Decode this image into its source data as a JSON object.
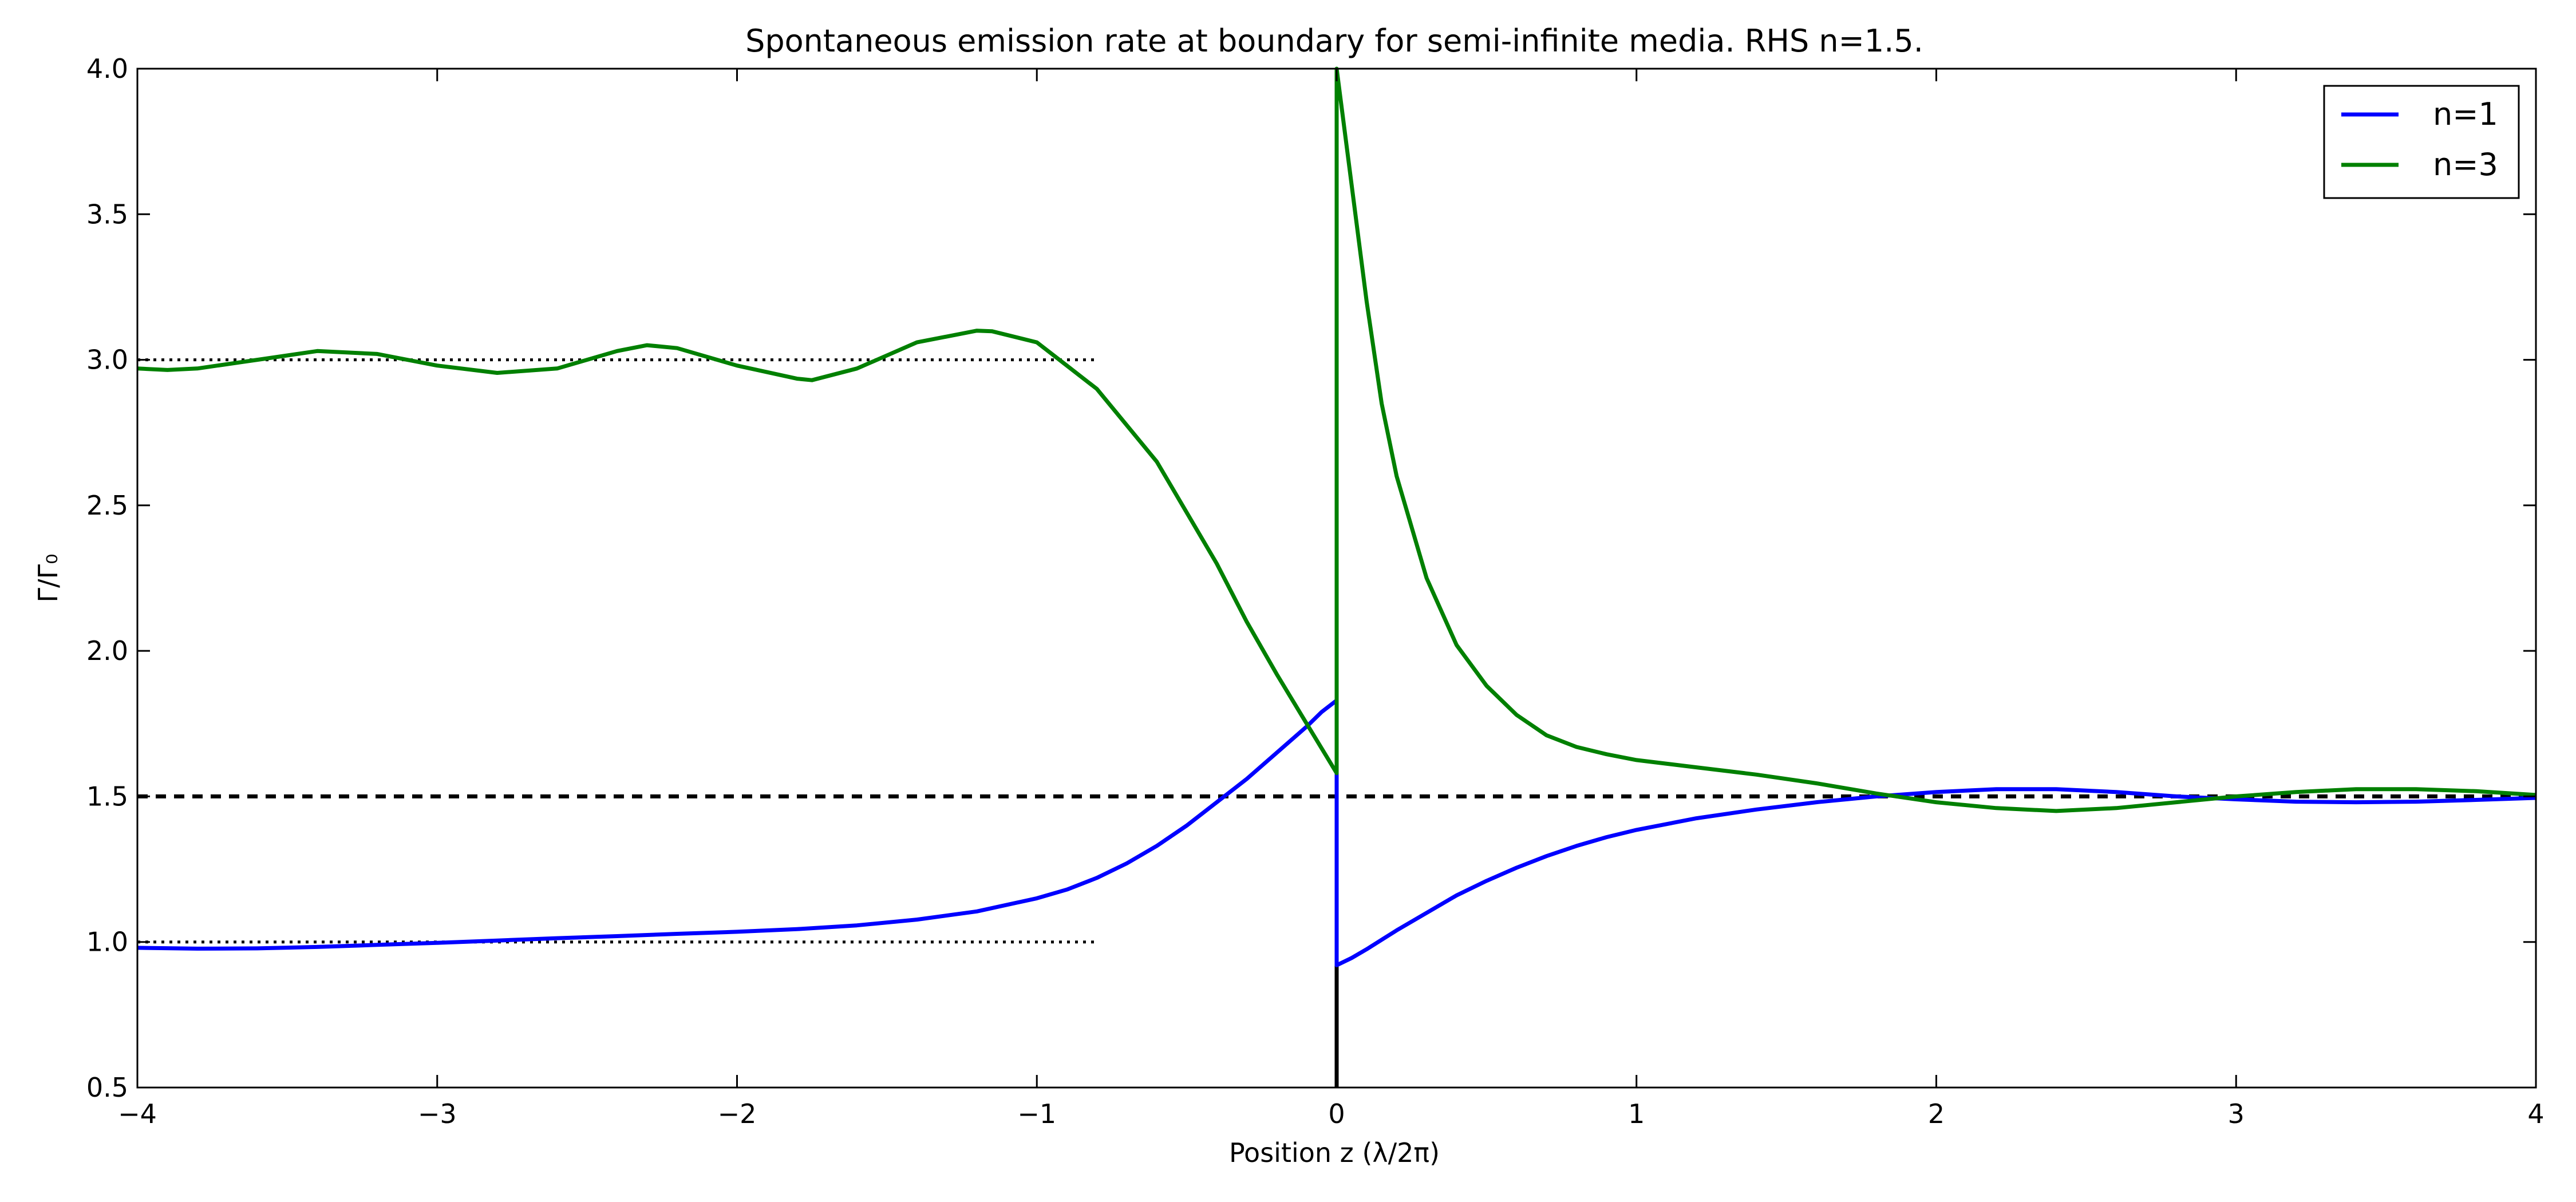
{
  "chart_data": {
    "type": "line",
    "title": "Spontaneous emission rate at boundary for semi-infinite media. RHS n=1.5.",
    "xlabel": "Position z (λ/2π)",
    "ylabel": "Γ/Γ₀",
    "xlim": [
      -4,
      4
    ],
    "ylim": [
      0.5,
      4.0
    ],
    "x_ticks": [
      -4,
      -3,
      -2,
      -1,
      0,
      1,
      2,
      3,
      4
    ],
    "x_tick_labels": [
      "−4",
      "−3",
      "−2",
      "−1",
      "0",
      "1",
      "2",
      "3",
      "4"
    ],
    "y_ticks": [
      0.5,
      1.0,
      1.5,
      2.0,
      2.5,
      3.0,
      3.5,
      4.0
    ],
    "y_tick_labels": [
      "0.5",
      "1.0",
      "1.5",
      "2.0",
      "2.5",
      "3.0",
      "3.5",
      "4.0"
    ],
    "grid": false,
    "legend_position": "top-right",
    "series": [
      {
        "name": "n=1",
        "color": "#0000ff",
        "x": [
          -4.0,
          -3.8,
          -3.6,
          -3.4,
          -3.2,
          -3.0,
          -2.8,
          -2.6,
          -2.4,
          -2.2,
          -2.0,
          -1.8,
          -1.6,
          -1.4,
          -1.2,
          -1.0,
          -0.9,
          -0.8,
          -0.7,
          -0.6,
          -0.5,
          -0.4,
          -0.3,
          -0.2,
          -0.1,
          -0.05,
          0.0,
          0.0,
          0.05,
          0.1,
          0.2,
          0.3,
          0.4,
          0.5,
          0.6,
          0.7,
          0.8,
          0.9,
          1.0,
          1.2,
          1.4,
          1.6,
          1.8,
          2.0,
          2.2,
          2.4,
          2.6,
          2.8,
          3.0,
          3.2,
          3.4,
          3.6,
          3.8,
          4.0
        ],
        "y": [
          0.98,
          0.977,
          0.978,
          0.983,
          0.99,
          0.997,
          1.005,
          1.013,
          1.02,
          1.028,
          1.035,
          1.044,
          1.057,
          1.077,
          1.105,
          1.15,
          1.18,
          1.22,
          1.27,
          1.33,
          1.4,
          1.48,
          1.56,
          1.65,
          1.74,
          1.79,
          1.83,
          0.92,
          0.945,
          0.975,
          1.04,
          1.1,
          1.16,
          1.21,
          1.255,
          1.295,
          1.33,
          1.36,
          1.385,
          1.425,
          1.455,
          1.48,
          1.5,
          1.515,
          1.525,
          1.525,
          1.515,
          1.5,
          1.49,
          1.482,
          1.48,
          1.482,
          1.488,
          1.495
        ]
      },
      {
        "name": "n=3",
        "color": "#008000",
        "x": [
          -4.0,
          -3.9,
          -3.8,
          -3.6,
          -3.4,
          -3.2,
          -3.0,
          -2.8,
          -2.6,
          -2.4,
          -2.3,
          -2.2,
          -2.0,
          -1.8,
          -1.75,
          -1.6,
          -1.4,
          -1.2,
          -1.15,
          -1.0,
          -0.9,
          -0.8,
          -0.6,
          -0.4,
          -0.3,
          -0.2,
          -0.1,
          0.0,
          0.0,
          0.05,
          0.1,
          0.15,
          0.2,
          0.3,
          0.4,
          0.5,
          0.6,
          0.7,
          0.8,
          0.9,
          1.0,
          1.2,
          1.4,
          1.6,
          1.8,
          2.0,
          2.2,
          2.4,
          2.6,
          2.8,
          3.0,
          3.2,
          3.4,
          3.6,
          3.8,
          4.0
        ],
        "y": [
          2.97,
          2.965,
          2.97,
          3.0,
          3.03,
          3.02,
          2.98,
          2.955,
          2.97,
          3.03,
          3.05,
          3.04,
          2.98,
          2.935,
          2.93,
          2.97,
          3.06,
          3.1,
          3.098,
          3.06,
          2.98,
          2.9,
          2.65,
          2.3,
          2.1,
          1.92,
          1.75,
          1.58,
          4.0,
          3.6,
          3.2,
          2.85,
          2.6,
          2.25,
          2.02,
          1.88,
          1.78,
          1.71,
          1.67,
          1.645,
          1.625,
          1.6,
          1.575,
          1.545,
          1.51,
          1.48,
          1.46,
          1.45,
          1.46,
          1.48,
          1.5,
          1.515,
          1.525,
          1.525,
          1.518,
          1.505
        ]
      }
    ],
    "reference_lines": [
      {
        "kind": "horizontal",
        "y": 3.0,
        "x": [
          -4,
          -0.8
        ],
        "style": "dotted",
        "color": "#000000"
      },
      {
        "kind": "horizontal",
        "y": 1.0,
        "x": [
          -4,
          -0.8
        ],
        "style": "dotted",
        "color": "#000000"
      },
      {
        "kind": "horizontal",
        "y": 1.5,
        "x": [
          -4,
          4
        ],
        "style": "dashed",
        "color": "#000000"
      },
      {
        "kind": "vertical",
        "x": 0,
        "y": [
          0.5,
          4.0
        ],
        "style": "solid",
        "color": "#000000"
      }
    ]
  }
}
